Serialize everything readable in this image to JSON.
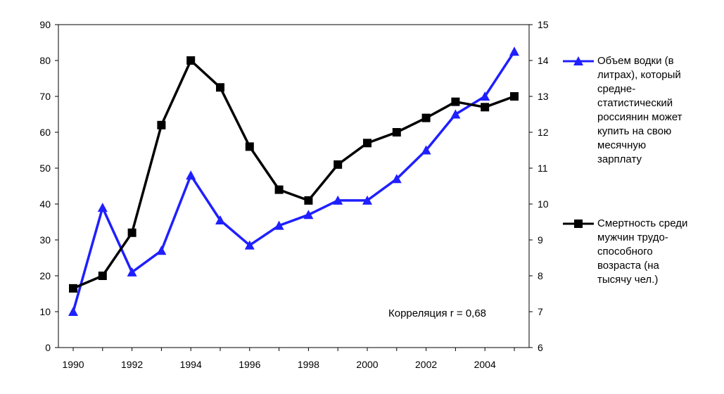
{
  "chart_data": {
    "type": "line",
    "x": [
      1990,
      1991,
      1992,
      1993,
      1994,
      1995,
      1996,
      1997,
      1998,
      1999,
      2000,
      2001,
      2002,
      2003,
      2004,
      2005
    ],
    "x_tick_labels": [
      "1990",
      "1992",
      "1994",
      "1996",
      "1998",
      "2000",
      "2002",
      "2004"
    ],
    "x_tick_values": [
      1990,
      1992,
      1994,
      1996,
      1998,
      2000,
      2002,
      2004
    ],
    "y_left": {
      "lim": [
        0,
        90
      ],
      "ticks": [
        0,
        10,
        20,
        30,
        40,
        50,
        60,
        70,
        80,
        90
      ]
    },
    "y_right": {
      "lim": [
        6,
        15
      ],
      "ticks": [
        6,
        7,
        8,
        9,
        10,
        11,
        12,
        13,
        14,
        15
      ]
    },
    "grid": false,
    "legend_position": "right",
    "series": [
      {
        "name": "Объем водки (в литрах), который средне-статистический россиянин может купить на свою месячную зарплату",
        "name_lines": [
          "Объем водки (в",
          "литрах), который",
          "средне-",
          "статистический",
          "россиянин может",
          "купить на свою",
          "месячную",
          "зарплату"
        ],
        "axis": "left",
        "color": "#1f1fff",
        "marker": "triangle",
        "values": [
          10,
          39,
          21,
          27,
          48,
          35.5,
          28.5,
          34,
          37,
          41,
          41,
          47,
          55,
          65,
          70,
          82.5
        ]
      },
      {
        "name": "Смертность среди мужчин трудо-способного возраста (на тысячу чел.)",
        "name_lines": [
          "Смертность среди",
          "мужчин трудо-",
          "способного",
          "возраста (на",
          "тысячу чел.)"
        ],
        "axis": "right",
        "color": "#000000",
        "marker": "square",
        "values": [
          7.65,
          8.0,
          9.2,
          12.2,
          14.0,
          13.25,
          11.6,
          10.4,
          10.1,
          11.1,
          11.7,
          12.0,
          12.4,
          12.85,
          12.7,
          13.0
        ]
      }
    ],
    "annotation": "Корреляция r = 0,68"
  }
}
